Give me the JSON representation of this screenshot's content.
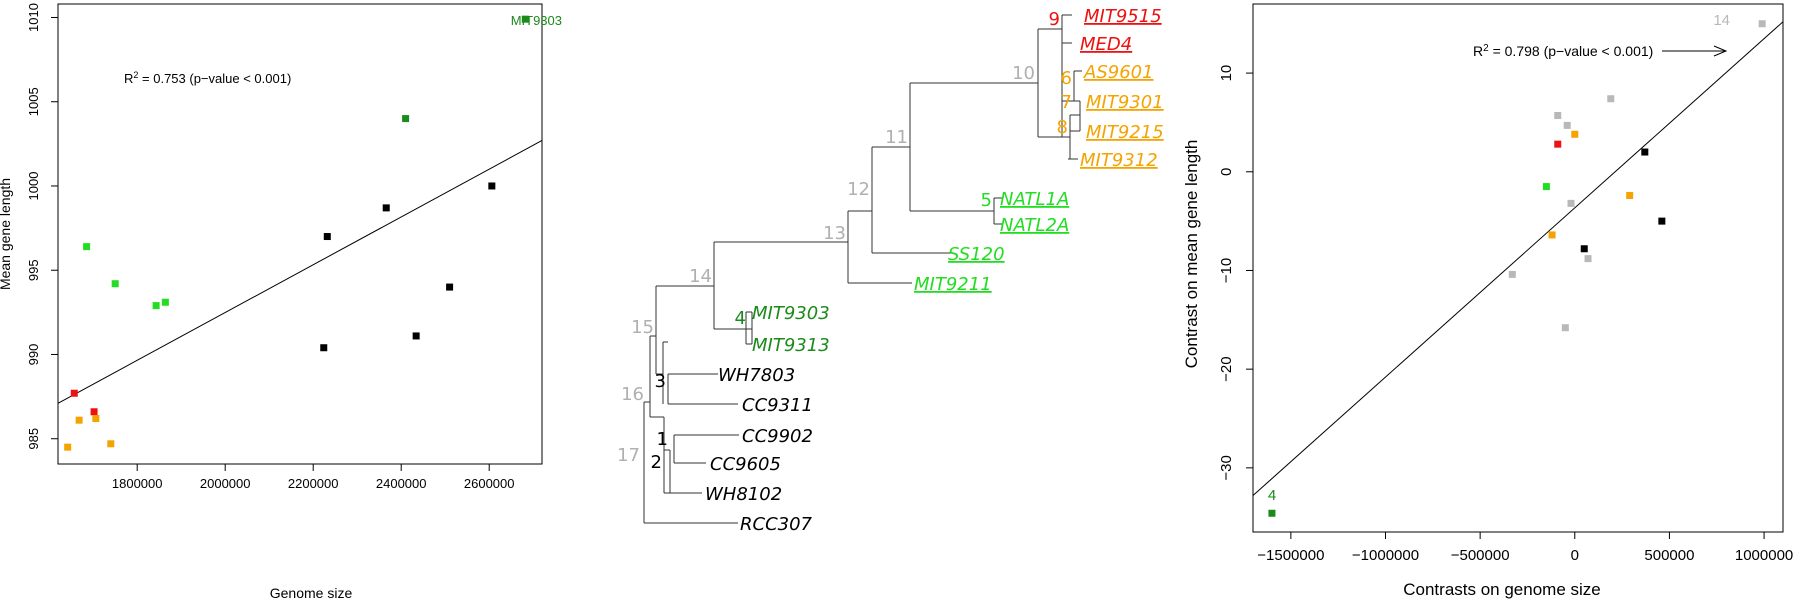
{
  "colors": {
    "black": "#000000",
    "dark_green": "#1a8a1a",
    "light_green": "#22dd22",
    "red": "#ee1111",
    "orange": "#f5a300",
    "gray": "#b8b8b8",
    "node_gray": "#b0b0b0"
  },
  "chart_data": [
    {
      "type": "scatter",
      "title": "",
      "xlabel": "Genome size",
      "ylabel": "Mean gene length",
      "xlim": [
        1620000,
        2720000
      ],
      "ylim": [
        983.5,
        1010.8
      ],
      "x_ticks": [
        1800000,
        2000000,
        2200000,
        2400000,
        2600000
      ],
      "x_tick_labels": [
        "1800000",
        "2000000",
        "2200000",
        "2400000",
        "2600000"
      ],
      "y_ticks": [
        985,
        990,
        995,
        1000,
        1005,
        1010
      ],
      "y_tick_labels": [
        "985",
        "990",
        "995",
        "1000",
        "1005",
        "1010"
      ],
      "annotation": {
        "prefix": "R",
        "sup": "2",
        "text": " = 0.753 (p−value < 0.001)"
      },
      "point_label": "MIT9303",
      "regression": {
        "x0": 1620000,
        "y0": 987.1,
        "x1": 2720000,
        "y1": 1002.7
      },
      "points": [
        {
          "x": 2682000,
          "y": 1009.9,
          "color": "#1a8a1a"
        },
        {
          "x": 2410000,
          "y": 1004.0,
          "color": "#1a8a1a"
        },
        {
          "x": 1685000,
          "y": 996.4,
          "color": "#22dd22"
        },
        {
          "x": 1750000,
          "y": 994.2,
          "color": "#22dd22"
        },
        {
          "x": 1843000,
          "y": 992.9,
          "color": "#22dd22"
        },
        {
          "x": 1864000,
          "y": 993.1,
          "color": "#22dd22"
        },
        {
          "x": 2606000,
          "y": 1000.0,
          "color": "#000000"
        },
        {
          "x": 2366000,
          "y": 998.7,
          "color": "#000000"
        },
        {
          "x": 2232000,
          "y": 997.0,
          "color": "#000000"
        },
        {
          "x": 2510000,
          "y": 994.0,
          "color": "#000000"
        },
        {
          "x": 2434000,
          "y": 991.1,
          "color": "#000000"
        },
        {
          "x": 2224000,
          "y": 990.4,
          "color": "#000000"
        },
        {
          "x": 1657000,
          "y": 987.7,
          "color": "#ee1111"
        },
        {
          "x": 1702000,
          "y": 986.6,
          "color": "#ee1111"
        },
        {
          "x": 1668000,
          "y": 986.1,
          "color": "#f5a300"
        },
        {
          "x": 1706000,
          "y": 986.2,
          "color": "#f5a300"
        },
        {
          "x": 1740000,
          "y": 984.7,
          "color": "#f5a300"
        },
        {
          "x": 1642000,
          "y": 984.5,
          "color": "#f5a300"
        }
      ]
    },
    {
      "type": "tree",
      "leaves": [
        {
          "label": "MIT9515",
          "color": "#ee1111",
          "underline": true
        },
        {
          "label": "MED4",
          "color": "#ee1111",
          "underline": true
        },
        {
          "label": "AS9601",
          "color": "#f5a300",
          "underline": true
        },
        {
          "label": "MIT9301",
          "color": "#f5a300",
          "underline": true
        },
        {
          "label": "MIT9215",
          "color": "#f5a300",
          "underline": true
        },
        {
          "label": "MIT9312",
          "color": "#f5a300",
          "underline": true
        },
        {
          "label": "NATL1A",
          "color": "#22dd22",
          "underline": true
        },
        {
          "label": "NATL2A",
          "color": "#22dd22",
          "underline": true
        },
        {
          "label": "SS120",
          "color": "#22dd22",
          "underline": true
        },
        {
          "label": "MIT9211",
          "color": "#22dd22",
          "underline": true
        },
        {
          "label": "MIT9303",
          "color": "#1a8a1a",
          "underline": false
        },
        {
          "label": "MIT9313",
          "color": "#1a8a1a",
          "underline": false
        },
        {
          "label": "WH7803",
          "color": "#000000",
          "underline": false
        },
        {
          "label": "CC9311",
          "color": "#000000",
          "underline": false
        },
        {
          "label": "CC9902",
          "color": "#000000",
          "underline": false
        },
        {
          "label": "CC9605",
          "color": "#000000",
          "underline": false
        },
        {
          "label": "WH8102",
          "color": "#000000",
          "underline": false
        },
        {
          "label": "RCC307",
          "color": "#000000",
          "underline": false
        }
      ],
      "nodes": [
        {
          "label": "9",
          "color": "#ee1111"
        },
        {
          "label": "10",
          "color": "#b0b0b0"
        },
        {
          "label": "6",
          "color": "#f5a300"
        },
        {
          "label": "7",
          "color": "#f5a300"
        },
        {
          "label": "8",
          "color": "#f5a300"
        },
        {
          "label": "11",
          "color": "#b0b0b0"
        },
        {
          "label": "12",
          "color": "#b0b0b0"
        },
        {
          "label": "5",
          "color": "#22dd22"
        },
        {
          "label": "13",
          "color": "#b0b0b0"
        },
        {
          "label": "14",
          "color": "#b0b0b0"
        },
        {
          "label": "4",
          "color": "#1a8a1a"
        },
        {
          "label": "15",
          "color": "#b0b0b0"
        },
        {
          "label": "3",
          "color": "#000000"
        },
        {
          "label": "16",
          "color": "#b0b0b0"
        },
        {
          "label": "1",
          "color": "#000000"
        },
        {
          "label": "2",
          "color": "#000000"
        },
        {
          "label": "17",
          "color": "#b0b0b0"
        }
      ]
    },
    {
      "type": "scatter",
      "title": "",
      "xlabel": "Contrasts on genome size",
      "ylabel": "Contrast on mean gene length",
      "xlim": [
        -1700000,
        1100000
      ],
      "ylim": [
        -36.5,
        17.0
      ],
      "x_ticks": [
        -1500000,
        -1000000,
        -500000,
        0,
        500000,
        1000000
      ],
      "x_tick_labels": [
        "−1500000",
        "−1000000",
        "−500000",
        "0",
        "500000",
        "1000000"
      ],
      "y_ticks": [
        -30,
        -20,
        -10,
        0,
        10
      ],
      "y_tick_labels": [
        "−30",
        "−20",
        "−10",
        "0",
        "10"
      ],
      "annotation": {
        "prefix": "R",
        "sup": "2",
        "text": " = 0.798 (p−value < 0.001)"
      },
      "label_14": "14",
      "label_4": "4",
      "regression": {
        "x0": -1700000,
        "y0": -32.8,
        "x1": 1100000,
        "y1": 15.2
      },
      "points": [
        {
          "x": 990000,
          "y": 15.0,
          "color": "#b8b8b8"
        },
        {
          "x": -1600000,
          "y": -34.6,
          "color": "#1a8a1a"
        },
        {
          "x": 190000,
          "y": 7.4,
          "color": "#b8b8b8"
        },
        {
          "x": -90000,
          "y": 5.7,
          "color": "#b8b8b8"
        },
        {
          "x": -40000,
          "y": 4.7,
          "color": "#b8b8b8"
        },
        {
          "x": 0,
          "y": 3.8,
          "color": "#f5a300"
        },
        {
          "x": -90000,
          "y": 2.8,
          "color": "#ee1111"
        },
        {
          "x": 370000,
          "y": 2.0,
          "color": "#000000"
        },
        {
          "x": -150000,
          "y": -1.5,
          "color": "#22dd22"
        },
        {
          "x": 290000,
          "y": -2.4,
          "color": "#f5a300"
        },
        {
          "x": -20000,
          "y": -3.2,
          "color": "#b8b8b8"
        },
        {
          "x": 460000,
          "y": -5.0,
          "color": "#000000"
        },
        {
          "x": -120000,
          "y": -6.4,
          "color": "#f5a300"
        },
        {
          "x": 50000,
          "y": -7.8,
          "color": "#000000"
        },
        {
          "x": 70000,
          "y": -8.8,
          "color": "#b8b8b8"
        },
        {
          "x": -330000,
          "y": -10.4,
          "color": "#b8b8b8"
        },
        {
          "x": -50000,
          "y": -15.8,
          "color": "#b8b8b8"
        }
      ]
    }
  ]
}
